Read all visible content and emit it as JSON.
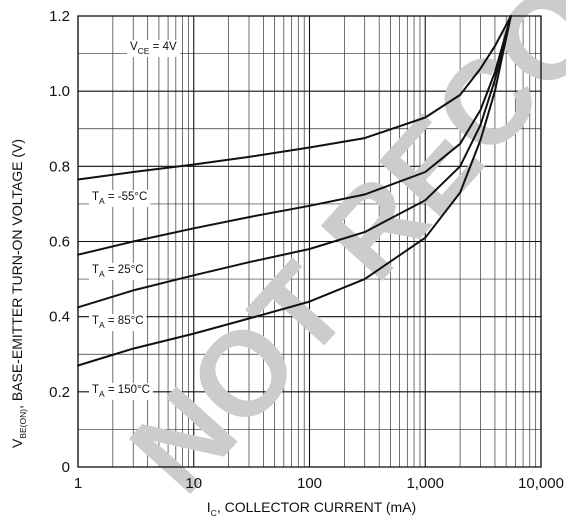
{
  "chart_data": {
    "type": "line",
    "title": "",
    "xlabel": "I",
    "xlabel_sub": "C",
    "xlabel_rest": ", COLLECTOR CURRENT (mA)",
    "ylabel": "V",
    "ylabel_sub": "BE(ON)",
    "ylabel_rest": ", BASE-EMITTER TURN-ON VOLTAGE (V)",
    "x_scale": "log",
    "xlim": [
      1,
      10000
    ],
    "ylim": [
      0,
      1.2
    ],
    "x_ticks": [
      1,
      10,
      100,
      1000,
      10000
    ],
    "x_tick_labels": [
      "1",
      "10",
      "100",
      "1,000",
      "10,000"
    ],
    "y_ticks": [
      0,
      0.2,
      0.4,
      0.6,
      0.8,
      1.0,
      1.2
    ],
    "y_tick_labels": [
      "0",
      "0.2",
      "0.4",
      "0.6",
      "0.8",
      "1.0",
      "1.2"
    ],
    "grid": true,
    "condition": {
      "main": "V",
      "sub": "CE",
      "rest": " = 4V"
    },
    "series": [
      {
        "name": "T_A = -55°C",
        "label_main": "T",
        "label_sub": "A",
        "label_rest": " = -55°C",
        "x": [
          1,
          3,
          10,
          30,
          100,
          300,
          1000,
          2000,
          3000,
          4000,
          5500
        ],
        "y": [
          0.765,
          0.785,
          0.805,
          0.825,
          0.85,
          0.875,
          0.93,
          0.99,
          1.06,
          1.12,
          1.2
        ]
      },
      {
        "name": "T_A = 25°C",
        "label_main": "T",
        "label_sub": "A",
        "label_rest": " = 25°C",
        "x": [
          1,
          3,
          10,
          30,
          100,
          300,
          1000,
          2000,
          3000,
          4000,
          5500
        ],
        "y": [
          0.565,
          0.6,
          0.635,
          0.665,
          0.695,
          0.725,
          0.785,
          0.86,
          0.95,
          1.05,
          1.2
        ]
      },
      {
        "name": "T_A = 85°C",
        "label_main": "T",
        "label_sub": "A",
        "label_rest": " = 85°C",
        "x": [
          1,
          3,
          10,
          30,
          100,
          300,
          1000,
          2000,
          3000,
          4000,
          5500
        ],
        "y": [
          0.425,
          0.47,
          0.51,
          0.545,
          0.58,
          0.625,
          0.71,
          0.8,
          0.91,
          1.03,
          1.2
        ]
      },
      {
        "name": "T_A = 150°C",
        "label_main": "T",
        "label_sub": "A",
        "label_rest": " = 150°C",
        "x": [
          1,
          3,
          10,
          30,
          100,
          300,
          1000,
          2000,
          3000,
          4000,
          5500
        ],
        "y": [
          0.27,
          0.315,
          0.355,
          0.395,
          0.44,
          0.5,
          0.61,
          0.73,
          0.87,
          1.0,
          1.2
        ]
      }
    ]
  },
  "watermark": "NOT RECOMMENDED FOR NEW DESIGN"
}
